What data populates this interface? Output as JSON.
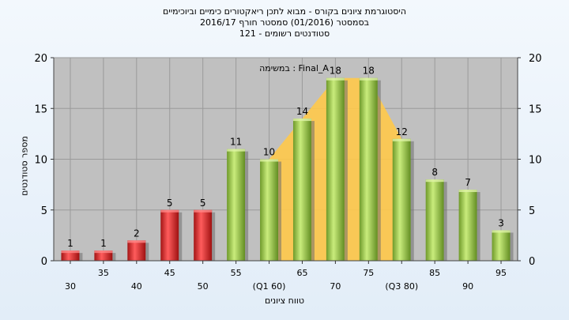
{
  "titles": {
    "line1": "היסטוגרמת ציונים בקורס - מבוא לתכן ריאקטורים כימיים וביוכימיים",
    "line2": "בסמסטר  (01/2016)  סמסטר חורף 2016/17",
    "line3": "סטודנטים רשומים - 121"
  },
  "chart_data": {
    "type": "bar",
    "xlabel": "טווח ציונים",
    "ylabel": "מספר סטודנטים",
    "annotation": "במשימה : Final_A",
    "ylim": [
      0,
      20
    ],
    "yticks": [
      "0",
      "5",
      "10",
      "15",
      "20"
    ],
    "grid": true,
    "plot_background": "#c0c0c0",
    "categories": [
      "30",
      "35",
      "40",
      "45",
      "50",
      "55",
      "(Q1 60)",
      "65",
      "70",
      "75",
      "(Q3 80)",
      "85",
      "90",
      "95"
    ],
    "values": [
      1,
      1,
      2,
      5,
      5,
      11,
      10,
      14,
      18,
      18,
      12,
      8,
      7,
      3
    ],
    "bar_colors": [
      "#e53935",
      "#e53935",
      "#e53935",
      "#e53935",
      "#e53935",
      "#9ccc4a",
      "#9ccc4a",
      "#9ccc4a",
      "#9ccc4a",
      "#9ccc4a",
      "#9ccc4a",
      "#9ccc4a",
      "#9ccc4a",
      "#9ccc4a"
    ],
    "quartile_area": {
      "from": "(Q1 60)",
      "to": "(Q3 80)",
      "color": "#ffc94a"
    }
  }
}
